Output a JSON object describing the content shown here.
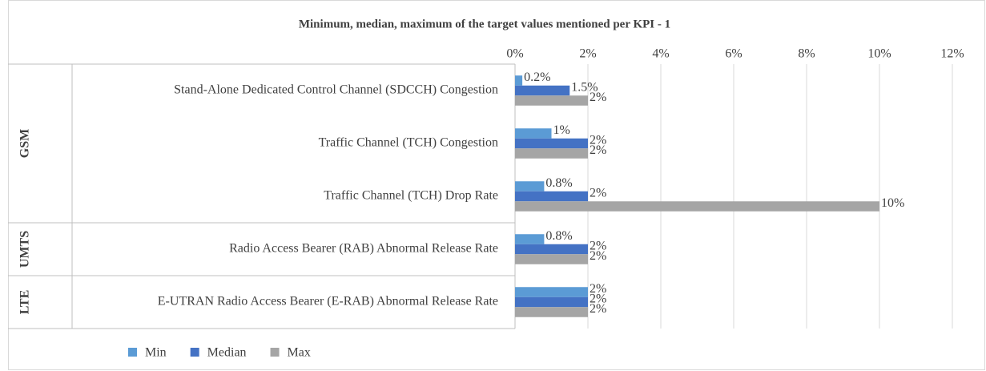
{
  "chart_data": {
    "type": "bar",
    "orientation": "horizontal",
    "title": "Minimum, median, maximum of the target values mentioned per KPI - 1",
    "categories": [
      "Stand-Alone Dedicated Control Channel (SDCCH) Congestion",
      "Traffic Channel (TCH) Congestion",
      "Traffic Channel (TCH) Drop Rate",
      "Radio Access Bearer (RAB) Abnormal Release Rate",
      "E-UTRAN Radio Access Bearer (E-RAB) Abnormal Release Rate"
    ],
    "category_groups": [
      "GSM",
      "GSM",
      "GSM",
      "UMTS",
      "LTE"
    ],
    "series": [
      {
        "name": "Min",
        "color": "#5b9bd5",
        "values": [
          0.2,
          1,
          0.8,
          0.8,
          2
        ],
        "value_labels": [
          "0.2%",
          "1%",
          "0.8%",
          "0.8%",
          "2%"
        ]
      },
      {
        "name": "Median",
        "color": "#4472c4",
        "values": [
          1.5,
          2,
          2,
          2,
          2
        ],
        "value_labels": [
          "1.5%",
          "2%",
          "2%",
          "2%",
          "2%"
        ]
      },
      {
        "name": "Max",
        "color": "#a5a5a5",
        "values": [
          2,
          2,
          10,
          2,
          2
        ],
        "value_labels": [
          "2%",
          "2%",
          "10%",
          "2%",
          "2%"
        ]
      }
    ],
    "xlim": [
      0,
      12
    ],
    "xticks": [
      {
        "value": 0,
        "label": "0%"
      },
      {
        "value": 2,
        "label": "2%"
      },
      {
        "value": 4,
        "label": "4%"
      },
      {
        "value": 6,
        "label": "6%"
      },
      {
        "value": 8,
        "label": "8%"
      },
      {
        "value": 10,
        "label": "10%"
      },
      {
        "value": 12,
        "label": "12%"
      }
    ],
    "grid": true,
    "legend": "bottom-left"
  }
}
